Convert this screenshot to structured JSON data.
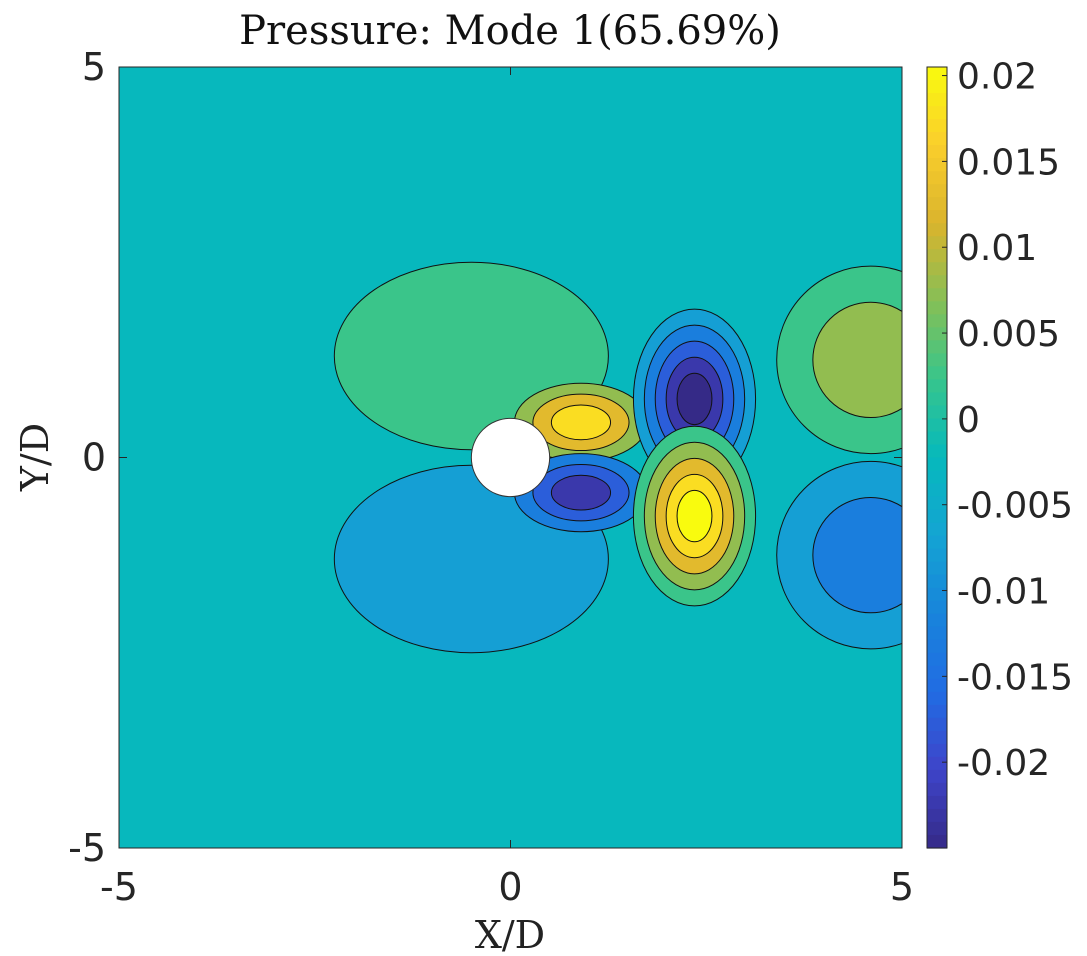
{
  "chart_data": {
    "type": "contour",
    "title": "Pressure: Mode 1(65.69%)",
    "xlabel": "X/D",
    "ylabel": "Y/D",
    "xlim": [
      -5,
      5
    ],
    "ylim": [
      -5,
      5
    ],
    "x_ticks": [
      {
        "value": -5,
        "label": "-5"
      },
      {
        "value": 0,
        "label": "0"
      },
      {
        "value": 5,
        "label": "5"
      }
    ],
    "y_ticks": [
      {
        "value": 5,
        "label": "5"
      },
      {
        "value": 0,
        "label": "0"
      },
      {
        "value": -5,
        "label": "-5"
      }
    ],
    "colorbar": {
      "range": [
        -0.025,
        0.0205
      ],
      "ticks": [
        {
          "value": 0.02,
          "label": "0.02"
        },
        {
          "value": 0.015,
          "label": "0.015"
        },
        {
          "value": 0.01,
          "label": "0.01"
        },
        {
          "value": 0.005,
          "label": "0.005"
        },
        {
          "value": 0,
          "label": "0"
        },
        {
          "value": -0.005,
          "label": "-0.005"
        },
        {
          "value": -0.01,
          "label": "-0.01"
        },
        {
          "value": -0.015,
          "label": "-0.015"
        },
        {
          "value": -0.02,
          "label": "-0.02"
        }
      ],
      "colormap": "parula"
    },
    "background_value": -0.0025,
    "cylinder": {
      "center": [
        0,
        0
      ],
      "diameter": 1
    },
    "structures": [
      {
        "name": "upper-upstream-lobe",
        "center": [
          -0.5,
          1.3
        ],
        "rx": 1.75,
        "ry": 1.2,
        "levels": [
          0.0025
        ]
      },
      {
        "name": "upper-inner-positive",
        "center": [
          0.9,
          0.45
        ],
        "rx": 0.85,
        "ry": 0.5,
        "levels": [
          0.0075,
          0.0125,
          0.0175
        ]
      },
      {
        "name": "lower-upstream-lobe",
        "center": [
          -0.5,
          -1.3
        ],
        "rx": 1.75,
        "ry": 1.2,
        "levels": [
          -0.0075
        ]
      },
      {
        "name": "lower-inner-negative",
        "center": [
          0.9,
          -0.45
        ],
        "rx": 0.85,
        "ry": 0.5,
        "levels": [
          -0.0125,
          -0.0175,
          -0.0225
        ]
      },
      {
        "name": "upper-vortex-negative",
        "center": [
          2.35,
          0.75
        ],
        "rx": 0.78,
        "ry": 1.15,
        "levels": [
          -0.0075,
          -0.0125,
          -0.0175,
          -0.0225,
          -0.0275
        ]
      },
      {
        "name": "lower-vortex-positive",
        "center": [
          2.35,
          -0.75
        ],
        "rx": 0.78,
        "ry": 1.15,
        "levels": [
          0.0025,
          0.0075,
          0.0125,
          0.0175,
          0.0205
        ]
      },
      {
        "name": "upper-far-positive",
        "center": [
          4.6,
          1.25
        ],
        "rx": 1.2,
        "ry": 1.2,
        "levels": [
          0.0025,
          0.0075
        ]
      },
      {
        "name": "lower-far-negative",
        "center": [
          4.6,
          -1.25
        ],
        "rx": 1.2,
        "ry": 1.2,
        "levels": [
          -0.0075,
          -0.0125
        ]
      }
    ]
  }
}
